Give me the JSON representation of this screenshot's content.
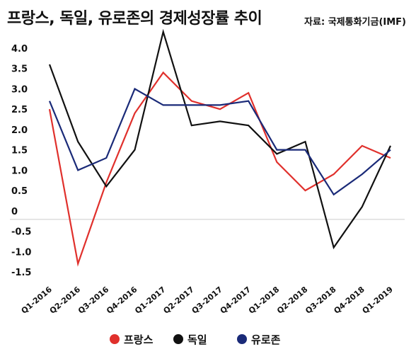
{
  "header": {
    "title": "프랑스, 독일, 유로존의 경제성장률 추이",
    "source": "자료: 국제통화기금(IMF)"
  },
  "chart_data": {
    "type": "line",
    "title": "프랑스, 독일, 유로존의 경제성장률 추이",
    "xlabel": "",
    "ylabel": "",
    "ylim": [
      -1.5,
      4.0
    ],
    "yticks": [
      {
        "value": 4.0,
        "label": "4.0"
      },
      {
        "value": 3.5,
        "label": "3.5"
      },
      {
        "value": 3.0,
        "label": "3.0"
      },
      {
        "value": 2.5,
        "label": "2.5"
      },
      {
        "value": 2.0,
        "label": "2.0"
      },
      {
        "value": 1.5,
        "label": "1.5"
      },
      {
        "value": 1.0,
        "label": "1.0"
      },
      {
        "value": 0.5,
        "label": "0.5"
      },
      {
        "value": 0,
        "label": "0"
      },
      {
        "value": -0.5,
        "label": "-0.5"
      },
      {
        "value": -1.0,
        "label": "-1.0"
      },
      {
        "value": -1.5,
        "label": "-1.5"
      }
    ],
    "grid": false,
    "legend_position": "bottom",
    "categories": [
      "Q1-2016",
      "Q2-2016",
      "Q3-2016",
      "Q4-2016",
      "Q1-2017",
      "Q2-2017",
      "Q3-2017",
      "Q4-2017",
      "Q1-2018",
      "Q2-2018",
      "Q3-2018",
      "Q4-2018",
      "Q1-2019"
    ],
    "series": [
      {
        "name": "프랑스",
        "color": "#e0302c",
        "values": [
          2.5,
          -1.3,
          0.7,
          2.4,
          3.4,
          2.7,
          2.5,
          2.9,
          1.2,
          0.5,
          0.9,
          1.6,
          1.3
        ]
      },
      {
        "name": "독일",
        "color": "#111111",
        "values": [
          3.6,
          1.7,
          0.6,
          1.5,
          4.4,
          2.1,
          2.2,
          2.1,
          1.4,
          1.7,
          -0.9,
          0.1,
          1.6
        ]
      },
      {
        "name": "유로존",
        "color": "#1a2a78",
        "values": [
          2.7,
          1.0,
          1.3,
          3.0,
          2.6,
          2.6,
          2.6,
          2.7,
          1.5,
          1.5,
          0.4,
          0.9,
          1.5
        ]
      }
    ]
  }
}
